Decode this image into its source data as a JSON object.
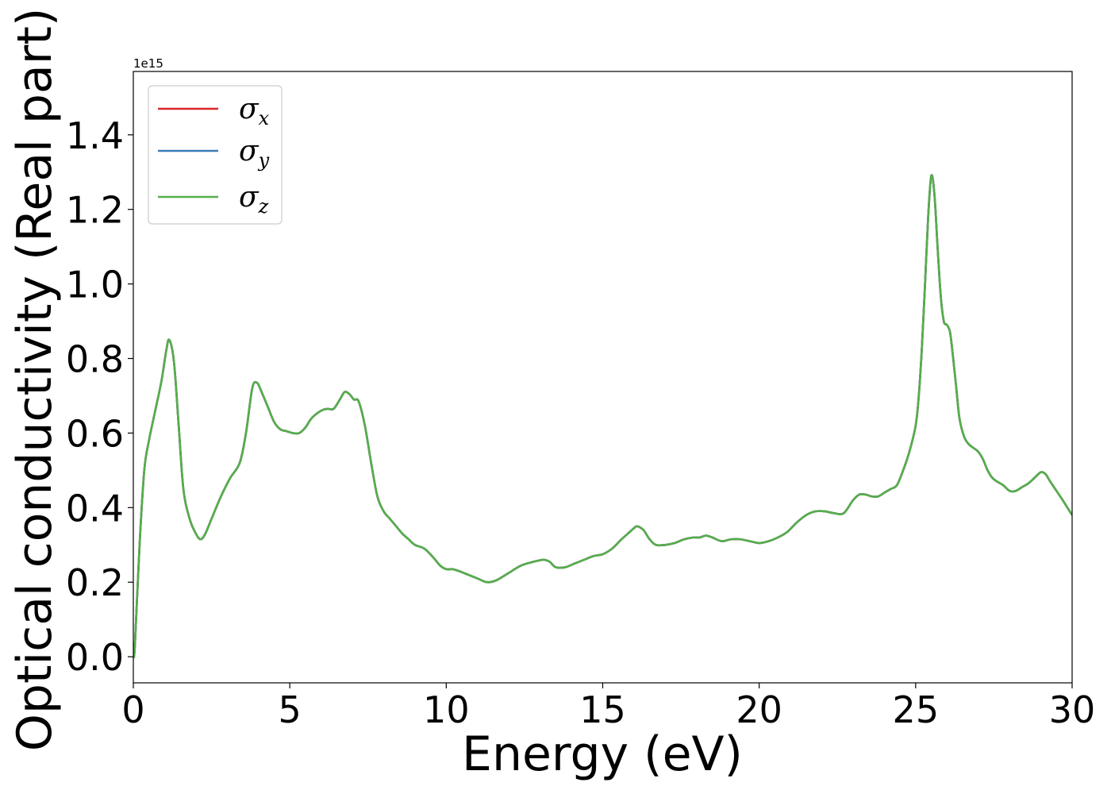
{
  "chart_data": {
    "type": "line",
    "xlabel": "Energy (eV)",
    "ylabel": "Optical conductivity (Real part)",
    "y_offset_text": "1e15",
    "xlim": [
      0,
      30
    ],
    "ylim": [
      -0.07,
      1.57
    ],
    "y_scale_factor": 1000000000000000.0,
    "xticks": [
      0,
      5,
      10,
      15,
      20,
      25,
      30
    ],
    "xtick_labels": [
      "0",
      "5",
      "10",
      "15",
      "20",
      "25",
      "30"
    ],
    "yticks": [
      0.0,
      0.2,
      0.4,
      0.6,
      0.8,
      1.0,
      1.2,
      1.4
    ],
    "ytick_labels": [
      "0.0",
      "0.2",
      "0.4",
      "0.6",
      "0.8",
      "1.0",
      "1.2",
      "1.4"
    ],
    "grid": false,
    "legend_position": "top-left",
    "series": [
      {
        "name": "σx",
        "symbol": "σ",
        "subscript": "x",
        "color": "#d62728"
      },
      {
        "name": "σy",
        "symbol": "σ",
        "subscript": "y",
        "color": "#3a7db7"
      },
      {
        "name": "σz",
        "symbol": "σ",
        "subscript": "z",
        "color": "#56ad4b"
      }
    ],
    "x": [
      0,
      0.05,
      0.2,
      0.35,
      0.5,
      0.7,
      0.9,
      1.05,
      1.15,
      1.3,
      1.45,
      1.6,
      1.8,
      2.0,
      2.15,
      2.3,
      2.5,
      2.8,
      3.1,
      3.4,
      3.6,
      3.8,
      3.95,
      4.1,
      4.3,
      4.5,
      4.7,
      4.9,
      5.1,
      5.3,
      5.5,
      5.7,
      6.0,
      6.2,
      6.4,
      6.6,
      6.75,
      6.9,
      7.05,
      7.2,
      7.4,
      7.6,
      7.8,
      8.0,
      8.2,
      8.4,
      8.6,
      8.8,
      9.0,
      9.3,
      9.6,
      9.8,
      10.0,
      10.2,
      10.4,
      10.7,
      11.0,
      11.3,
      11.6,
      12.0,
      12.4,
      12.8,
      13.1,
      13.3,
      13.5,
      13.8,
      14.1,
      14.4,
      14.7,
      15.0,
      15.3,
      15.6,
      15.8,
      16.0,
      16.1,
      16.3,
      16.5,
      16.7,
      17.0,
      17.3,
      17.6,
      17.9,
      18.1,
      18.3,
      18.5,
      18.8,
      19.1,
      19.4,
      19.7,
      20.0,
      20.3,
      20.6,
      20.9,
      21.2,
      21.5,
      21.8,
      22.1,
      22.4,
      22.7,
      23.0,
      23.2,
      23.4,
      23.6,
      23.8,
      24.0,
      24.2,
      24.4,
      24.6,
      24.8,
      25.0,
      25.1,
      25.2,
      25.3,
      25.4,
      25.5,
      25.6,
      25.7,
      25.8,
      25.9,
      26.0,
      26.1,
      26.2,
      26.3,
      26.4,
      26.55,
      26.7,
      26.85,
      27.0,
      27.15,
      27.3,
      27.45,
      27.6,
      27.8,
      28.0,
      28.2,
      28.4,
      28.6,
      28.8,
      29.0,
      29.15,
      29.3,
      29.5,
      29.7,
      29.85,
      30.0
    ],
    "y": [
      0.0,
      0.03,
      0.3,
      0.5,
      0.58,
      0.66,
      0.74,
      0.82,
      0.85,
      0.79,
      0.62,
      0.45,
      0.37,
      0.33,
      0.315,
      0.33,
      0.37,
      0.43,
      0.48,
      0.52,
      0.6,
      0.72,
      0.735,
      0.71,
      0.67,
      0.63,
      0.61,
      0.605,
      0.6,
      0.6,
      0.615,
      0.64,
      0.66,
      0.665,
      0.665,
      0.69,
      0.71,
      0.705,
      0.69,
      0.685,
      0.62,
      0.52,
      0.43,
      0.39,
      0.37,
      0.35,
      0.33,
      0.315,
      0.3,
      0.29,
      0.265,
      0.245,
      0.235,
      0.235,
      0.23,
      0.22,
      0.21,
      0.2,
      0.205,
      0.225,
      0.245,
      0.255,
      0.26,
      0.255,
      0.24,
      0.24,
      0.25,
      0.26,
      0.27,
      0.275,
      0.29,
      0.315,
      0.33,
      0.345,
      0.35,
      0.34,
      0.315,
      0.3,
      0.3,
      0.305,
      0.315,
      0.32,
      0.32,
      0.325,
      0.32,
      0.31,
      0.315,
      0.315,
      0.31,
      0.305,
      0.31,
      0.32,
      0.335,
      0.36,
      0.38,
      0.39,
      0.39,
      0.385,
      0.385,
      0.42,
      0.435,
      0.435,
      0.43,
      0.43,
      0.44,
      0.45,
      0.46,
      0.5,
      0.55,
      0.62,
      0.7,
      0.83,
      1.0,
      1.18,
      1.29,
      1.24,
      1.1,
      0.97,
      0.9,
      0.89,
      0.87,
      0.8,
      0.72,
      0.64,
      0.59,
      0.57,
      0.56,
      0.55,
      0.53,
      0.5,
      0.48,
      0.47,
      0.46,
      0.445,
      0.445,
      0.455,
      0.465,
      0.48,
      0.495,
      0.49,
      0.47,
      0.445,
      0.42,
      0.4,
      0.38
    ]
  }
}
